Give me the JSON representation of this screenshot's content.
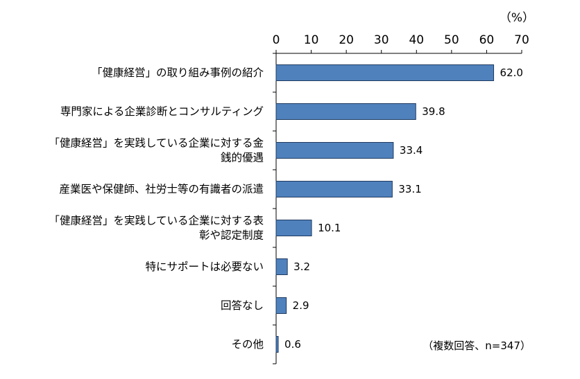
{
  "chart_data": {
    "type": "bar",
    "orientation": "horizontal",
    "unit_label": "（%）",
    "note": "（複数回答、n=347）",
    "xlim": [
      0,
      70
    ],
    "ticks": [
      "0",
      "10",
      "20",
      "30",
      "40",
      "50",
      "60",
      "70"
    ],
    "axis_position": "top",
    "grid": false,
    "categories": [
      [
        "「健康経営」の取り組み事例の紹介"
      ],
      [
        "専門家による企業診断とコンサルティング"
      ],
      [
        "「健康経営」を実践している企業に対する金",
        "銭的優遇"
      ],
      [
        "産業医や保健師、社労士等の有識者の派遣"
      ],
      [
        "「健康経営」を実践している企業に対する表",
        "彰や認定制度"
      ],
      [
        "特にサポートは必要ない"
      ],
      [
        "回答なし"
      ],
      [
        "その他"
      ]
    ],
    "values": [
      62.0,
      39.8,
      33.4,
      33.1,
      10.1,
      3.2,
      2.9,
      0.6
    ],
    "value_labels": [
      "62.0",
      "39.8",
      "33.4",
      "33.1",
      "10.1",
      "3.2",
      "2.9",
      "0.6"
    ],
    "colors": {
      "bar_fill": "#4f81bd",
      "bar_stroke": "#1f3a5f",
      "axis": "#000000"
    }
  }
}
